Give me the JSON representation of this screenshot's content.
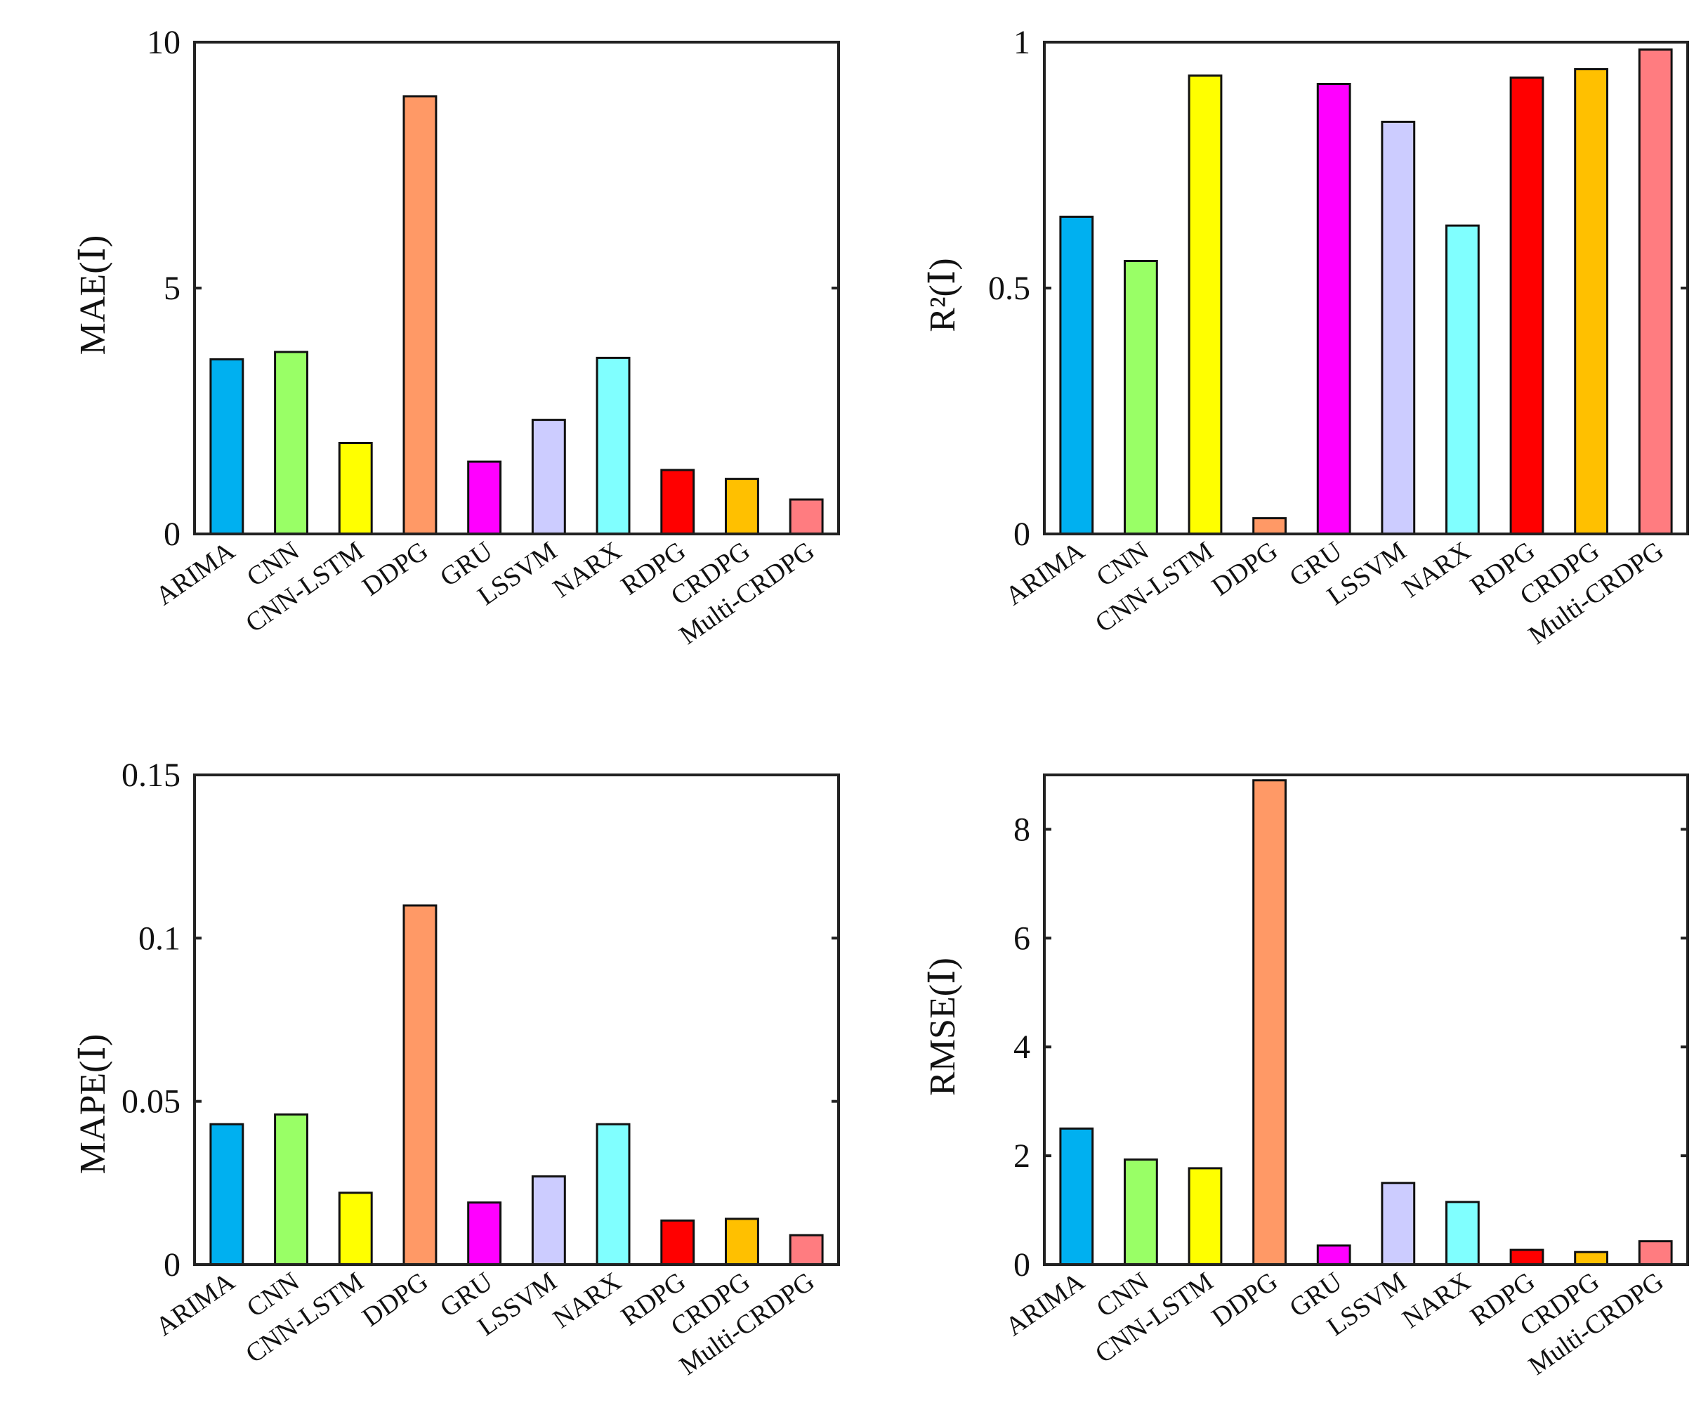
{
  "chart_data": [
    {
      "type": "bar",
      "ylabel": "MAE(Ⅰ)",
      "ylim": [
        0,
        10
      ],
      "yticks": [
        "0",
        "5",
        "10"
      ],
      "ytick_values": [
        0,
        5,
        10
      ],
      "categories": [
        "ARIMA",
        "CNN",
        "CNN-LSTM",
        "DDPG",
        "GRU",
        "LSSVM",
        "NARX",
        "RDPG",
        "CRDPG",
        "Multi-CRDPG"
      ],
      "values": [
        3.55,
        3.7,
        1.85,
        8.9,
        1.47,
        2.32,
        3.58,
        1.3,
        1.12,
        0.7
      ]
    },
    {
      "type": "bar",
      "ylabel": "R²(Ⅰ)",
      "ylim": [
        0,
        1
      ],
      "yticks": [
        "0",
        "0.5",
        "1"
      ],
      "ytick_values": [
        0,
        0.5,
        1
      ],
      "categories": [
        "ARIMA",
        "CNN",
        "CNN-LSTM",
        "DDPG",
        "GRU",
        "LSSVM",
        "NARX",
        "RDPG",
        "CRDPG",
        "Multi-CRDPG"
      ],
      "values": [
        0.645,
        0.555,
        0.932,
        0.032,
        0.915,
        0.838,
        0.627,
        0.928,
        0.945,
        0.985
      ]
    },
    {
      "type": "bar",
      "ylabel": "MAPE(Ⅰ)",
      "ylim": [
        0,
        0.15
      ],
      "yticks": [
        "0",
        "0.05",
        "0.1",
        "0.15"
      ],
      "ytick_values": [
        0,
        0.05,
        0.1,
        0.15
      ],
      "categories": [
        "ARIMA",
        "CNN",
        "CNN-LSTM",
        "DDPG",
        "GRU",
        "LSSVM",
        "NARX",
        "RDPG",
        "CRDPG",
        "Multi-CRDPG"
      ],
      "values": [
        0.043,
        0.046,
        0.022,
        0.11,
        0.019,
        0.027,
        0.043,
        0.0135,
        0.014,
        0.009
      ]
    },
    {
      "type": "bar",
      "ylabel": "RMSE(Ⅰ)",
      "ylim": [
        0,
        9
      ],
      "yticks": [
        "0",
        "2",
        "4",
        "6",
        "8"
      ],
      "ytick_values": [
        0,
        2,
        4,
        6,
        8
      ],
      "categories": [
        "ARIMA",
        "CNN",
        "CNN-LSTM",
        "DDPG",
        "GRU",
        "LSSVM",
        "NARX",
        "RDPG",
        "CRDPG",
        "Multi-CRDPG"
      ],
      "values": [
        2.5,
        1.93,
        1.77,
        8.9,
        0.35,
        1.5,
        1.15,
        0.27,
        0.23,
        0.43
      ]
    }
  ],
  "bar_colors": [
    "#00B0F0",
    "#99FF66",
    "#FFFF00",
    "#FF9966",
    "#FF00FF",
    "#CCCCFF",
    "#80FFFF",
    "#FF0000",
    "#FFC000",
    "#FF7C80"
  ]
}
